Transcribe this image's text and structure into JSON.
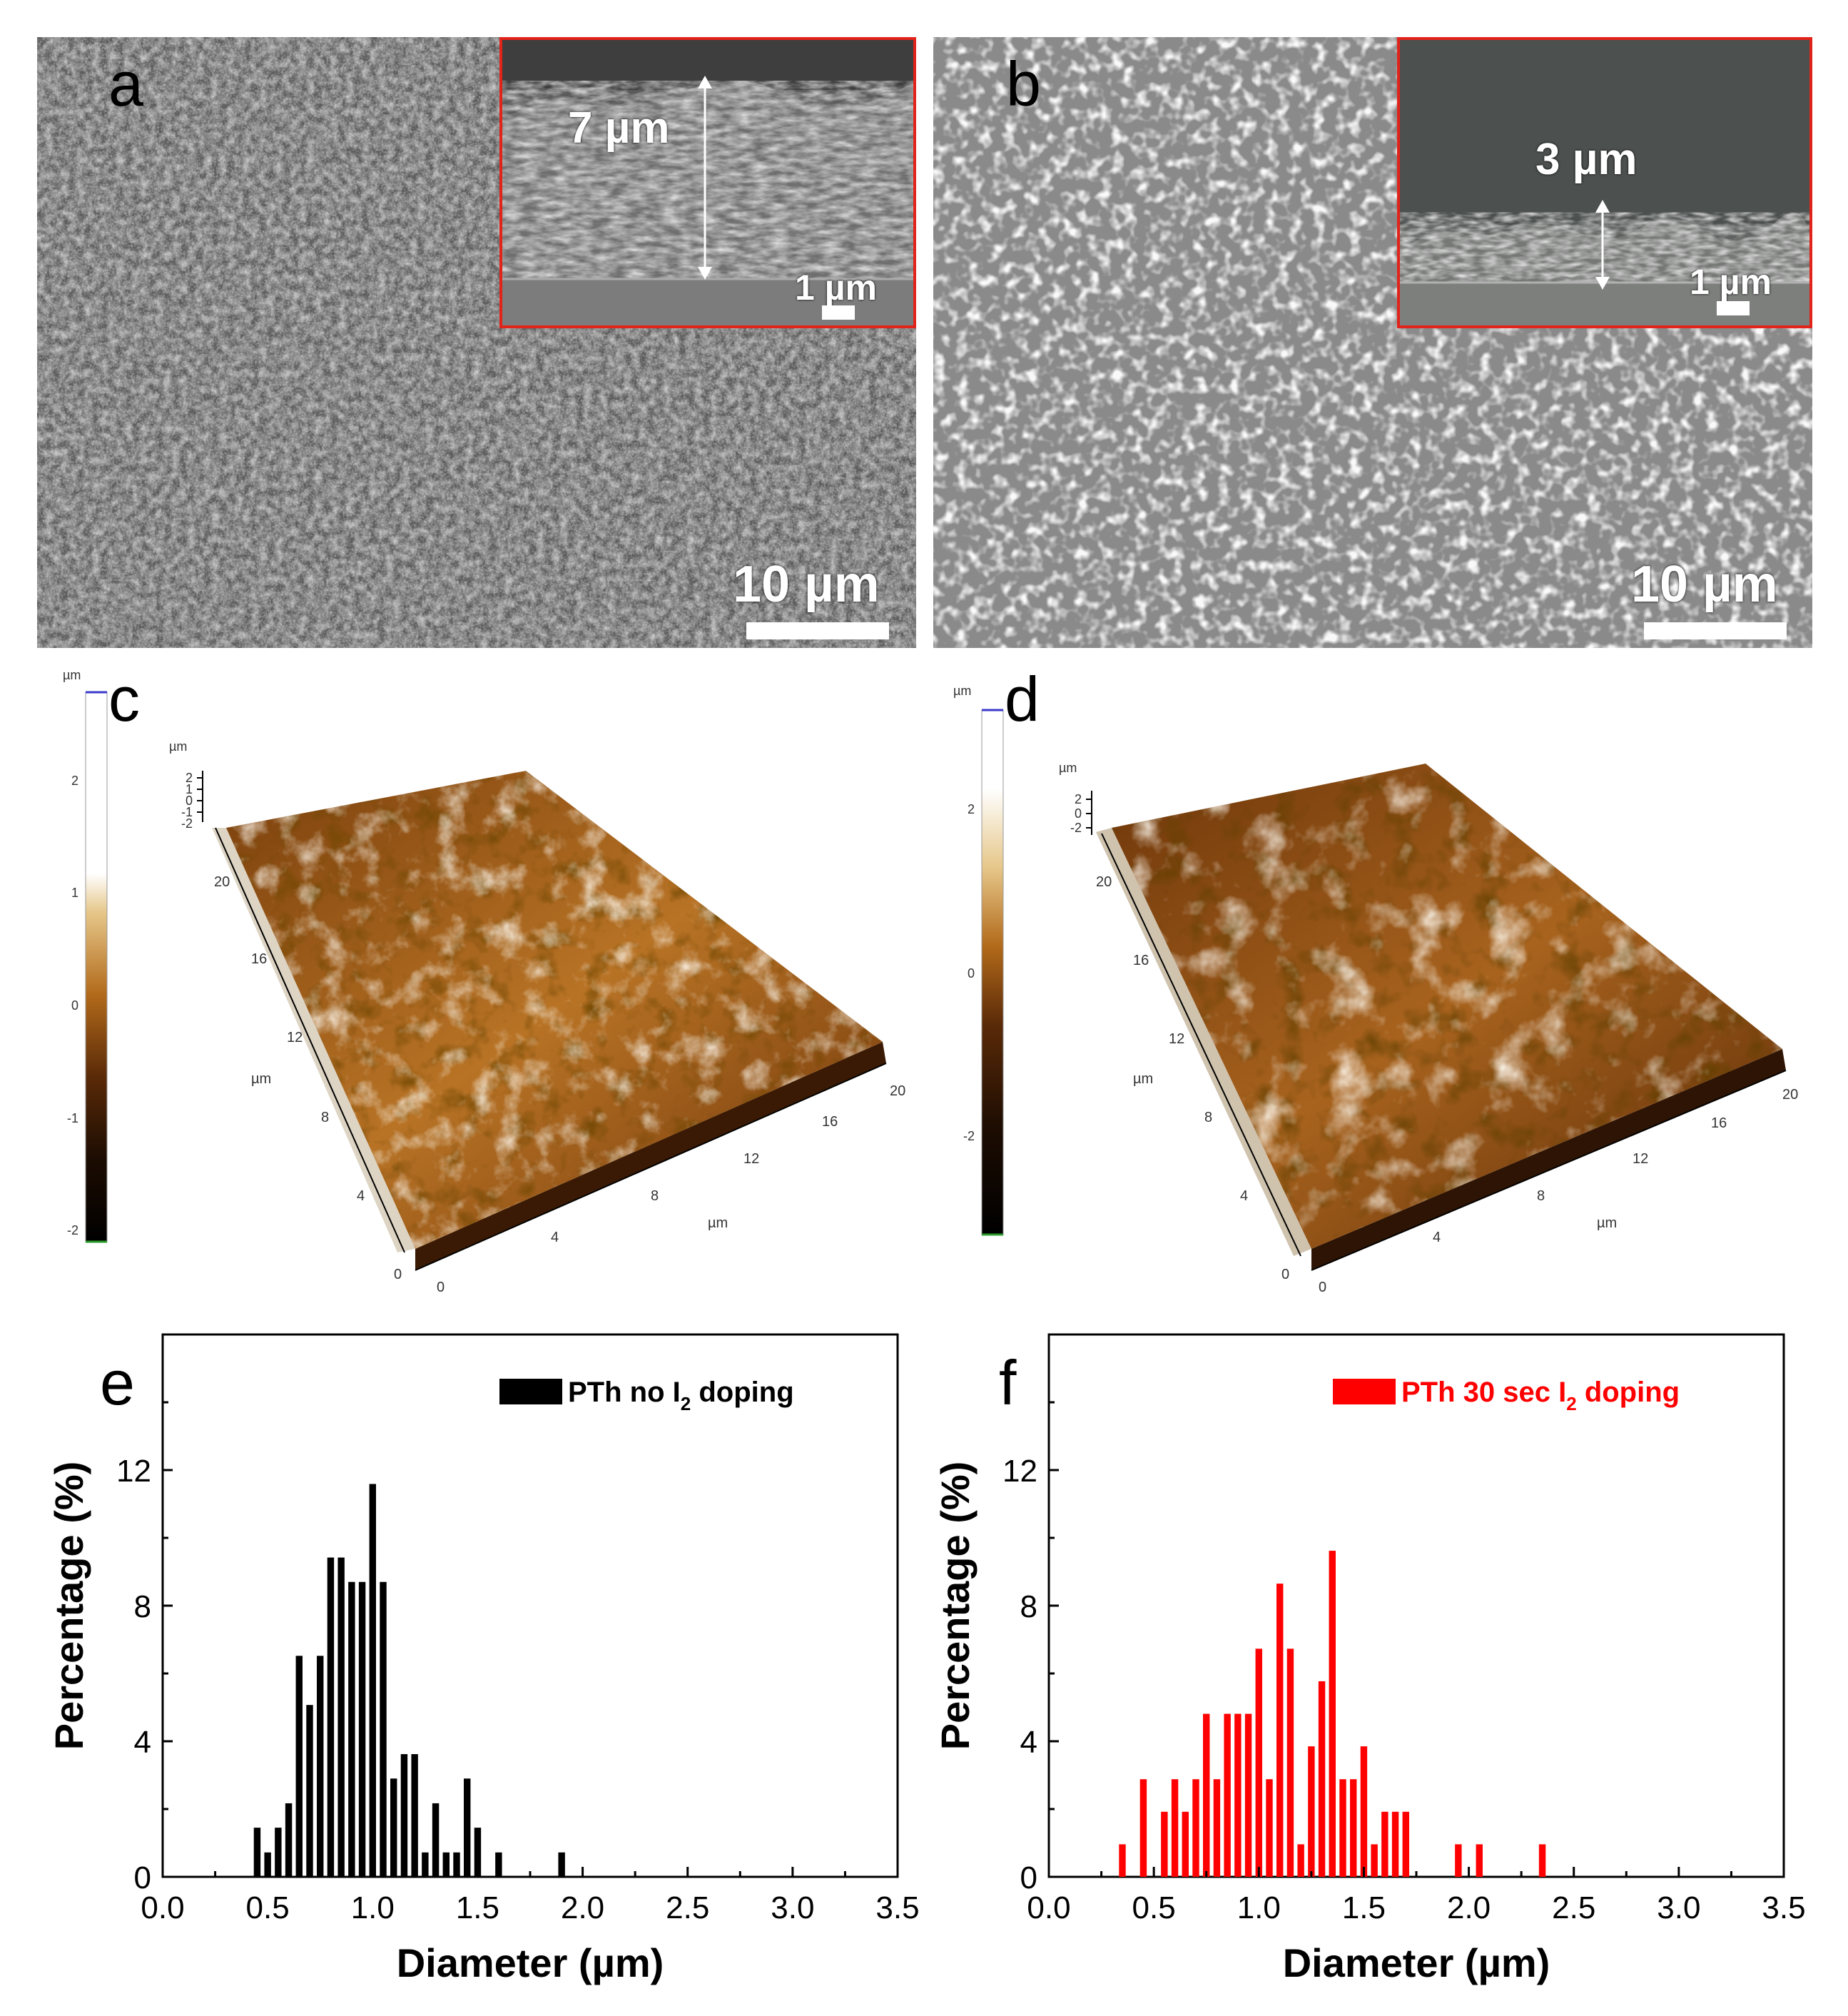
{
  "panels": {
    "a": {
      "letter": "a",
      "scale_label": "10 µm",
      "inset": {
        "thickness_label": "7 µm",
        "scale_label": "1 µm"
      }
    },
    "b": {
      "letter": "b",
      "scale_label": "10 µm",
      "inset": {
        "thickness_label": "3 µm",
        "scale_label": "1 µm"
      }
    },
    "c": {
      "letter": "c",
      "colorbar": {
        "unit": "µm",
        "ticks": [
          "2",
          "1",
          "0",
          "-1",
          "-2"
        ]
      },
      "z_unit": "µm",
      "z_ticks": [
        "2",
        "1",
        "0",
        "-1",
        "-2"
      ],
      "y_unit": "µm",
      "y_ticks": [
        "0",
        "4",
        "8",
        "12",
        "16",
        "20"
      ],
      "x_unit": "µm",
      "x_ticks": [
        "0",
        "4",
        "8",
        "12",
        "16",
        "20"
      ]
    },
    "d": {
      "letter": "d",
      "colorbar": {
        "unit": "µm",
        "ticks": [
          "2",
          "0",
          "-2"
        ]
      },
      "z_unit": "µm",
      "z_ticks": [
        "2",
        "0",
        "-2"
      ],
      "y_unit": "µm",
      "y_ticks": [
        "0",
        "4",
        "8",
        "12",
        "16",
        "20"
      ],
      "x_unit": "µm",
      "x_ticks": [
        "0",
        "4",
        "8",
        "12",
        "16",
        "20"
      ]
    }
  },
  "colors": {
    "inset_border": "#e2231a",
    "series_e": "#000000",
    "series_f": "#ff0000"
  },
  "chart_data": [
    {
      "letter": "e",
      "type": "bar",
      "xlabel": "Diameter (µm)",
      "ylabel": "Percentage (%)",
      "xlim": [
        0.0,
        3.5
      ],
      "ylim": [
        0,
        16
      ],
      "x_ticks": [
        "0.0",
        "0.5",
        "1.0",
        "1.5",
        "2.0",
        "2.5",
        "3.0",
        "3.5"
      ],
      "y_ticks": [
        "0",
        "4",
        "8",
        "12"
      ],
      "legend_position": "top-right",
      "series": [
        {
          "name": "PTh no I2 doping",
          "legend_prefix": "PTh no I",
          "legend_sub": "2",
          "legend_suffix": " doping",
          "color": "#000000",
          "x": [
            0.45,
            0.5,
            0.55,
            0.6,
            0.65,
            0.7,
            0.75,
            0.8,
            0.85,
            0.9,
            0.95,
            1.0,
            1.05,
            1.1,
            1.15,
            1.2,
            1.25,
            1.3,
            1.35,
            1.4,
            1.45,
            1.5,
            1.6,
            1.9
          ],
          "values": [
            1.45,
            0.72,
            1.45,
            2.17,
            6.52,
            5.07,
            6.52,
            9.42,
            9.42,
            8.7,
            8.7,
            11.59,
            8.7,
            2.9,
            3.62,
            3.62,
            0.72,
            2.17,
            0.72,
            0.72,
            2.9,
            1.45,
            0.72,
            0.72
          ]
        }
      ]
    },
    {
      "letter": "f",
      "type": "bar",
      "xlabel": "Diameter (µm)",
      "ylabel": "Percentage (%)",
      "xlim": [
        0.0,
        3.5
      ],
      "ylim": [
        0,
        16
      ],
      "x_ticks": [
        "0.0",
        "0.5",
        "1.0",
        "1.5",
        "2.0",
        "2.5",
        "3.0",
        "3.5"
      ],
      "y_ticks": [
        "0",
        "4",
        "8",
        "12"
      ],
      "legend_position": "top-right",
      "series": [
        {
          "name": "PTh 30 sec I2 doping",
          "legend_prefix": "PTh 30 sec I",
          "legend_sub": "2",
          "legend_suffix": " doping",
          "color": "#ff0000",
          "x": [
            0.35,
            0.45,
            0.55,
            0.6,
            0.65,
            0.7,
            0.75,
            0.8,
            0.85,
            0.9,
            0.95,
            1.0,
            1.05,
            1.1,
            1.15,
            1.2,
            1.25,
            1.3,
            1.35,
            1.4,
            1.45,
            1.5,
            1.55,
            1.6,
            1.65,
            1.7,
            1.95,
            2.05,
            2.35
          ],
          "values": [
            0.96,
            2.88,
            1.92,
            2.88,
            1.92,
            2.88,
            4.81,
            2.88,
            4.81,
            4.81,
            4.81,
            6.73,
            2.88,
            8.65,
            6.73,
            0.96,
            3.85,
            5.77,
            9.62,
            2.88,
            2.88,
            3.85,
            0.96,
            1.92,
            1.92,
            1.92,
            0.96,
            0.96,
            0.96
          ]
        }
      ]
    }
  ]
}
